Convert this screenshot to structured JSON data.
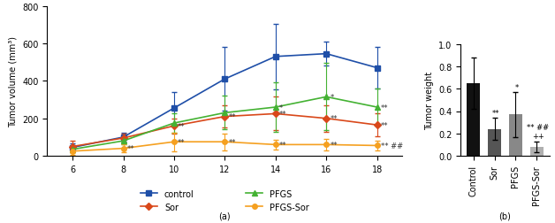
{
  "chart_data": [
    {
      "type": "line",
      "panel_label": "(a)",
      "y_label": "Tumor volume (mm³)",
      "x": [
        6,
        8,
        10,
        12,
        14,
        16,
        18
      ],
      "xlim": [
        5,
        19
      ],
      "xticks": [
        6,
        8,
        10,
        12,
        14,
        16,
        18
      ],
      "ylim": [
        0,
        800
      ],
      "yticks": [
        0,
        200,
        400,
        600,
        800
      ],
      "legend": "lower center",
      "series": [
        {
          "name": "control",
          "color": "#1f4fa8",
          "marker": "square",
          "values": [
            45,
            100,
            255,
            410,
            530,
            545,
            470
          ],
          "errors": [
            20,
            25,
            85,
            170,
            175,
            65,
            110
          ],
          "significance": [
            null,
            null,
            null,
            null,
            null,
            null,
            null
          ]
        },
        {
          "name": "Sor",
          "color": "#d9481a",
          "marker": "diamond",
          "values": [
            50,
            95,
            160,
            210,
            225,
            200,
            165
          ],
          "errors": [
            30,
            25,
            40,
            60,
            90,
            70,
            60
          ],
          "significance": [
            null,
            null,
            "**",
            "**",
            "**",
            "**",
            "**"
          ]
        },
        {
          "name": "PFGS",
          "color": "#44b233",
          "marker": "triangle",
          "values": [
            35,
            80,
            175,
            230,
            260,
            315,
            260
          ],
          "errors": [
            15,
            20,
            50,
            90,
            130,
            180,
            100
          ],
          "significance": [
            null,
            null,
            null,
            null,
            "*",
            "*",
            "**"
          ]
        },
        {
          "name": "PFGS-Sor",
          "color": "#f5a020",
          "marker": "circle",
          "values": [
            25,
            40,
            75,
            75,
            60,
            60,
            55
          ],
          "errors": [
            20,
            20,
            50,
            45,
            25,
            30,
            25
          ],
          "significance": [
            null,
            "**",
            "**",
            "**",
            "**",
            "**",
            "** ##"
          ]
        }
      ]
    },
    {
      "type": "bar",
      "panel_label": "(b)",
      "y_label": "Tumor weight",
      "categories": [
        "Control",
        "Sor",
        "PFGS",
        "PFGS-Sor"
      ],
      "values": [
        0.65,
        0.24,
        0.37,
        0.08
      ],
      "errors": [
        0.23,
        0.1,
        0.2,
        0.05
      ],
      "colors": [
        "#111111",
        "#555555",
        "#888888",
        "#b0b0b0"
      ],
      "significance": [
        [],
        [
          "**"
        ],
        [
          "*"
        ],
        [
          "** ##",
          "++"
        ]
      ],
      "ylim": [
        0,
        1.0
      ],
      "yticks": [
        {
          "value": 0,
          "label": "0.0"
        },
        {
          "value": 0.2,
          "label": "0.2"
        },
        {
          "value": 0.4,
          "label": "0.4"
        },
        {
          "value": 0.6,
          "label": "0.6"
        },
        {
          "value": 0.8,
          "label": "0.8"
        },
        {
          "value": 1.0,
          "label": "1.0"
        }
      ]
    }
  ]
}
